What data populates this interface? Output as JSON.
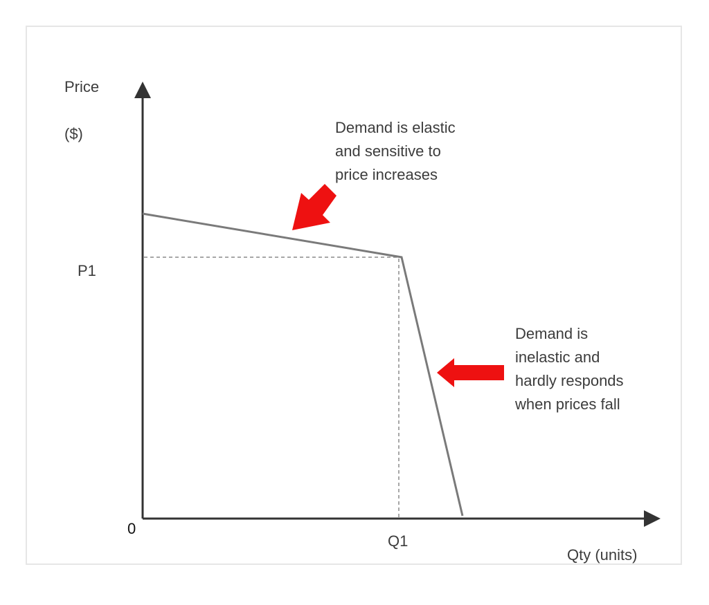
{
  "diagram": {
    "y_axis_label_line1": "Price",
    "y_axis_label_line2": "($)",
    "x_axis_label": "Qty (units)",
    "origin_label": "0",
    "price_marker": "P1",
    "quantity_marker": "Q1",
    "elastic_note": "Demand is elastic\nand  sensitive to\nprice increases",
    "inelastic_note": "Demand is\ninelastic and\nhardly responds\nwhen prices fall",
    "colors": {
      "axis": "#333333",
      "curve": "#7a7a7a",
      "guide": "#8a8a8a",
      "arrow": "#ee1111"
    }
  }
}
